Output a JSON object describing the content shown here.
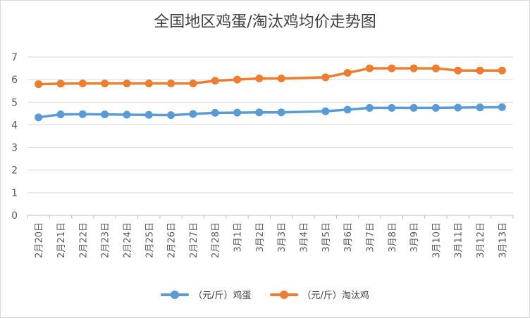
{
  "chart_data": {
    "type": "line",
    "title": "全国地区鸡蛋/淘汰鸡均价走势图",
    "xlabel": "",
    "ylabel": "",
    "ylim": [
      0,
      7
    ],
    "yticks": [
      "0",
      "1",
      "2",
      "3",
      "4",
      "5",
      "6",
      "7"
    ],
    "grid": true,
    "legend_position": "bottom",
    "categories": [
      "2月20日",
      "2月21日",
      "2月22日",
      "2月23日",
      "2月24日",
      "2月25日",
      "2月26日",
      "2月27日",
      "2月28日",
      "3月1日",
      "3月2日",
      "3月3日",
      "3月4日",
      "3月5日",
      "3月6日",
      "3月7日",
      "3月8日",
      "3月9日",
      "3月10日",
      "3月11日",
      "3月12日",
      "3月13日"
    ],
    "series": [
      {
        "name": "（元/斤）鸡蛋",
        "color": "#5b9bd5",
        "values": [
          4.33,
          4.46,
          4.47,
          4.46,
          4.45,
          4.44,
          4.43,
          4.48,
          4.53,
          4.54,
          4.55,
          4.55,
          null,
          4.6,
          4.67,
          4.75,
          4.75,
          4.75,
          4.75,
          4.76,
          4.77,
          4.78
        ]
      },
      {
        "name": "（元/斤）淘汰鸡",
        "color": "#ed7d31",
        "values": [
          5.8,
          5.82,
          5.83,
          5.83,
          5.83,
          5.83,
          5.83,
          5.83,
          5.95,
          6.0,
          6.05,
          6.05,
          null,
          6.1,
          6.3,
          6.5,
          6.5,
          6.5,
          6.5,
          6.4,
          6.4,
          6.4
        ]
      }
    ]
  }
}
